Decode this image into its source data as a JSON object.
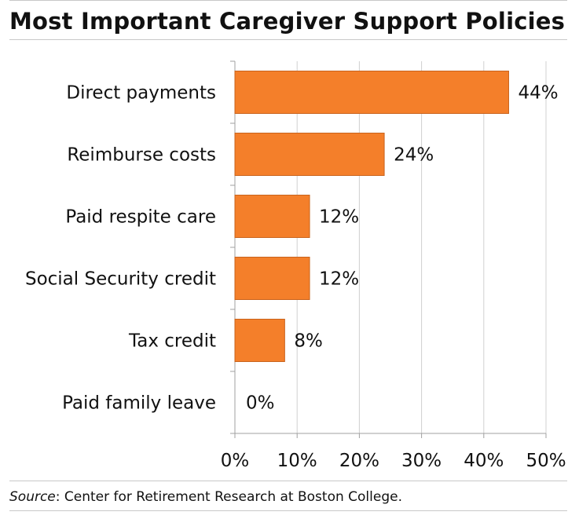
{
  "header": {
    "title": "Most Important Caregiver Support Policies"
  },
  "footer": {
    "source_prefix": "Source",
    "source_text": ": Center for Retirement Research at Boston College."
  },
  "chart_data": {
    "type": "bar",
    "orientation": "horizontal",
    "title": "Most Important Caregiver Support Policies",
    "categories": [
      "Direct payments",
      "Reimburse costs",
      "Paid respite care",
      "Social Security credit",
      "Tax credit",
      "Paid family leave"
    ],
    "values": [
      44,
      24,
      12,
      12,
      8,
      0
    ],
    "value_labels": [
      "44%",
      "24%",
      "12%",
      "12%",
      "8%",
      "0%"
    ],
    "xlim": [
      0,
      50
    ],
    "x_ticks": [
      0,
      10,
      20,
      30,
      40,
      50
    ],
    "x_tick_labels": [
      "0%",
      "10%",
      "20%",
      "30%",
      "40%",
      "50%"
    ],
    "grid": true,
    "colors": {
      "bar": "#F47F2A",
      "bar_stroke": "#c9631c",
      "grid": "#d0d0d0",
      "axis": "#a0a0a0"
    }
  }
}
